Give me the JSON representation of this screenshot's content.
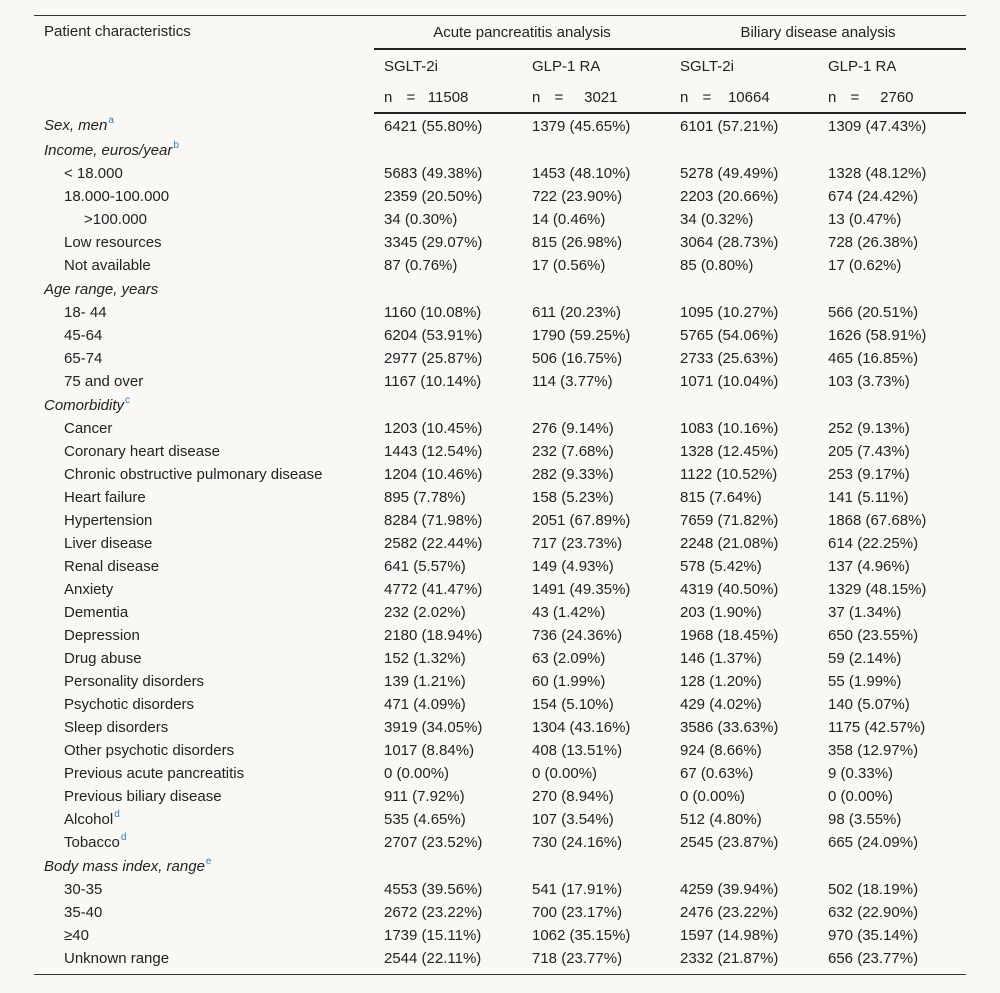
{
  "header": {
    "patient_col": "Patient characteristics",
    "groups": [
      "Acute pancreatitis analysis",
      "Biliary disease analysis"
    ],
    "drugs": [
      "SGLT-2i",
      "GLP-1 RA",
      "SGLT-2i",
      "GLP-1 RA"
    ],
    "n_label": "n =",
    "n_values": [
      "11508",
      "3021",
      "10664",
      "2760"
    ]
  },
  "rows": [
    {
      "type": "cat",
      "label": "Sex, men",
      "sup": "a",
      "values": [
        "6421 (55.80%)",
        "1379 (45.65%)",
        "6101 (57.21%)",
        "1309 (47.43%)"
      ]
    },
    {
      "type": "cat",
      "label": "Income, euros/year",
      "sup": "b",
      "values": [
        "",
        "",
        "",
        ""
      ]
    },
    {
      "type": "sub",
      "label": "<    18.000",
      "sup": "",
      "values": [
        "5683 (49.38%)",
        "1453 (48.10%)",
        "5278 (49.49%)",
        "1328 (48.12%)"
      ]
    },
    {
      "type": "sub",
      "label": "18.000-100.000",
      "sup": "",
      "values": [
        "2359 (20.50%)",
        "722 (23.90%)",
        "2203 (20.66%)",
        "674 (24.42%)"
      ]
    },
    {
      "type": "subsub",
      "label": ">100.000",
      "sup": "",
      "values": [
        "34 (0.30%)",
        "14 (0.46%)",
        "34 (0.32%)",
        "13 (0.47%)"
      ]
    },
    {
      "type": "sub",
      "label": "Low resources",
      "sup": "",
      "values": [
        "3345 (29.07%)",
        "815 (26.98%)",
        "3064 (28.73%)",
        "728 (26.38%)"
      ]
    },
    {
      "type": "sub",
      "label": "Not available",
      "sup": "",
      "values": [
        "87 (0.76%)",
        "17 (0.56%)",
        "85 (0.80%)",
        "17 (0.62%)"
      ]
    },
    {
      "type": "cat",
      "label": "Age range, years",
      "sup": "",
      "values": [
        "",
        "",
        "",
        ""
      ]
    },
    {
      "type": "sub",
      "label": "18- 44",
      "sup": "",
      "values": [
        "1160 (10.08%)",
        "611 (20.23%)",
        "1095 (10.27%)",
        "566 (20.51%)"
      ]
    },
    {
      "type": "sub",
      "label": "45-64",
      "sup": "",
      "values": [
        "6204 (53.91%)",
        "1790 (59.25%)",
        "5765 (54.06%)",
        "1626 (58.91%)"
      ]
    },
    {
      "type": "sub",
      "label": "65-74",
      "sup": "",
      "values": [
        "2977 (25.87%)",
        "506 (16.75%)",
        "2733 (25.63%)",
        "465 (16.85%)"
      ]
    },
    {
      "type": "sub",
      "label": "75 and over",
      "sup": "",
      "values": [
        "1167 (10.14%)",
        "114 (3.77%)",
        "1071 (10.04%)",
        "103 (3.73%)"
      ]
    },
    {
      "type": "cat",
      "label": "Comorbidity",
      "sup": "c",
      "values": [
        "",
        "",
        "",
        ""
      ]
    },
    {
      "type": "sub",
      "label": "Cancer",
      "sup": "",
      "values": [
        "1203 (10.45%)",
        "276 (9.14%)",
        "1083 (10.16%)",
        "252 (9.13%)"
      ]
    },
    {
      "type": "sub",
      "label": "Coronary heart disease",
      "sup": "",
      "values": [
        "1443 (12.54%)",
        "232 (7.68%)",
        "1328 (12.45%)",
        "205 (7.43%)"
      ]
    },
    {
      "type": "sub",
      "label": "Chronic obstructive pulmonary disease",
      "sup": "",
      "values": [
        "1204 (10.46%)",
        "282 (9.33%)",
        "1122 (10.52%)",
        "253 (9.17%)"
      ]
    },
    {
      "type": "sub",
      "label": "Heart failure",
      "sup": "",
      "values": [
        "895 (7.78%)",
        "158 (5.23%)",
        "815 (7.64%)",
        "141 (5.11%)"
      ]
    },
    {
      "type": "sub",
      "label": "Hypertension",
      "sup": "",
      "values": [
        "8284 (71.98%)",
        "2051 (67.89%)",
        "7659 (71.82%)",
        "1868 (67.68%)"
      ]
    },
    {
      "type": "sub",
      "label": "Liver disease",
      "sup": "",
      "values": [
        "2582 (22.44%)",
        "717 (23.73%)",
        "2248 (21.08%)",
        "614 (22.25%)"
      ]
    },
    {
      "type": "sub",
      "label": "Renal disease",
      "sup": "",
      "values": [
        "641 (5.57%)",
        "149 (4.93%)",
        "578 (5.42%)",
        "137 (4.96%)"
      ]
    },
    {
      "type": "sub",
      "label": "Anxiety",
      "sup": "",
      "values": [
        "4772 (41.47%)",
        "1491 (49.35%)",
        "4319 (40.50%)",
        "1329 (48.15%)"
      ]
    },
    {
      "type": "sub",
      "label": "Dementia",
      "sup": "",
      "values": [
        "232 (2.02%)",
        "43 (1.42%)",
        "203 (1.90%)",
        "37 (1.34%)"
      ]
    },
    {
      "type": "sub",
      "label": "Depression",
      "sup": "",
      "values": [
        "2180 (18.94%)",
        "736 (24.36%)",
        "1968 (18.45%)",
        "650 (23.55%)"
      ]
    },
    {
      "type": "sub",
      "label": "Drug abuse",
      "sup": "",
      "values": [
        "152 (1.32%)",
        "63 (2.09%)",
        "146 (1.37%)",
        "59 (2.14%)"
      ]
    },
    {
      "type": "sub",
      "label": "Personality disorders",
      "sup": "",
      "values": [
        "139 (1.21%)",
        "60 (1.99%)",
        "128 (1.20%)",
        "55 (1.99%)"
      ]
    },
    {
      "type": "sub",
      "label": "Psychotic disorders",
      "sup": "",
      "values": [
        "471 (4.09%)",
        "154 (5.10%)",
        "429 (4.02%)",
        "140 (5.07%)"
      ]
    },
    {
      "type": "sub",
      "label": "Sleep disorders",
      "sup": "",
      "values": [
        "3919 (34.05%)",
        "1304 (43.16%)",
        "3586 (33.63%)",
        "1175 (42.57%)"
      ]
    },
    {
      "type": "sub",
      "label": "Other psychotic disorders",
      "sup": "",
      "values": [
        "1017 (8.84%)",
        "408 (13.51%)",
        "924 (8.66%)",
        "358 (12.97%)"
      ]
    },
    {
      "type": "sub",
      "label": "Previous acute pancreatitis",
      "sup": "",
      "values": [
        "0 (0.00%)",
        "0 (0.00%)",
        "67 (0.63%)",
        "9 (0.33%)"
      ]
    },
    {
      "type": "sub",
      "label": "Previous biliary disease",
      "sup": "",
      "values": [
        "911 (7.92%)",
        "270 (8.94%)",
        "0 (0.00%)",
        "0 (0.00%)"
      ]
    },
    {
      "type": "sub",
      "label": "Alcohol",
      "sup": "d",
      "values": [
        "535 (4.65%)",
        "107 (3.54%)",
        "512 (4.80%)",
        "98 (3.55%)"
      ]
    },
    {
      "type": "sub",
      "label": "Tobacco",
      "sup": "d",
      "values": [
        "2707 (23.52%)",
        "730 (24.16%)",
        "2545 (23.87%)",
        "665 (24.09%)"
      ]
    },
    {
      "type": "cat",
      "label": "Body mass index, range",
      "sup": "e",
      "values": [
        "",
        "",
        "",
        ""
      ]
    },
    {
      "type": "sub",
      "label": "30-35",
      "sup": "",
      "values": [
        "4553 (39.56%)",
        "541 (17.91%)",
        "4259 (39.94%)",
        "502 (18.19%)"
      ]
    },
    {
      "type": "sub",
      "label": "35-40",
      "sup": "",
      "values": [
        "2672 (23.22%)",
        "700 (23.17%)",
        "2476 (23.22%)",
        "632 (22.90%)"
      ]
    },
    {
      "type": "sub",
      "label": "≥40",
      "sup": "",
      "values": [
        "1739 (15.11%)",
        "1062 (35.15%)",
        "1597 (14.98%)",
        "970 (35.14%)"
      ]
    },
    {
      "type": "sub",
      "label": "Unknown range",
      "sup": "",
      "values": [
        "2544 (22.11%)",
        "718 (23.77%)",
        "2332 (21.87%)",
        "656 (23.77%)"
      ]
    }
  ]
}
